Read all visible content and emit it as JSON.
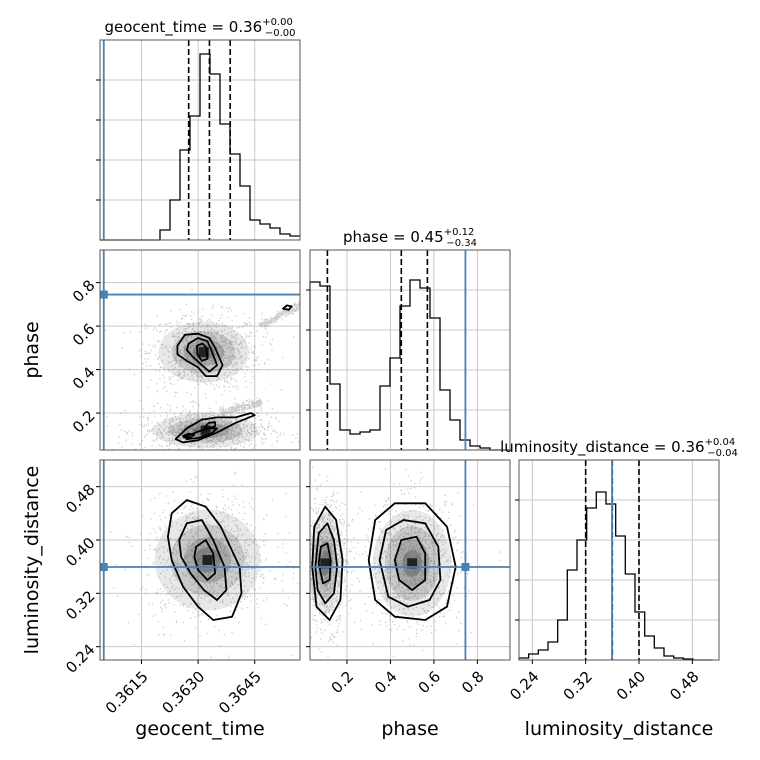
{
  "chart_data": {
    "type": "corner",
    "grid": true,
    "colors": {
      "truth": "#4682b4",
      "hist": "#000000",
      "scatter": "#8c8c8c",
      "grid": "#c8c8c8"
    },
    "parameters": [
      {
        "name": "geocent_time",
        "label": "geocent_time",
        "range": [
          0.3604,
          0.3657
        ],
        "ticks": [
          "0.3615",
          "0.3630",
          "0.3645"
        ],
        "tick_values": [
          0.3615,
          0.363,
          0.3645
        ],
        "truth": 0.3605,
        "title": {
          "prefix": "geocent_time = 0.36",
          "plus": "+0.00",
          "minus": "−0.00"
        },
        "quantiles": [
          0.36275,
          0.3633,
          0.36385
        ],
        "hist": {
          "edges_start": 0.3604,
          "bin_width": 0.000265,
          "counts": [
            0,
            0,
            0,
            0,
            0,
            0,
            0.05,
            0.2,
            0.45,
            0.62,
            0.93,
            0.83,
            0.58,
            0.43,
            0.27,
            0.1,
            0.08,
            0.06,
            0.03,
            0.02
          ]
        }
      },
      {
        "name": "phase",
        "label": "phase",
        "range": [
          0.03,
          0.95
        ],
        "ticks": [
          "0.2",
          "0.4",
          "0.6",
          "0.8"
        ],
        "tick_values": [
          0.2,
          0.4,
          0.6,
          0.8
        ],
        "truth": 0.745,
        "title": {
          "prefix": "phase = 0.45",
          "plus": "+0.12",
          "minus": "−0.34"
        },
        "quantiles": [
          0.11,
          0.45,
          0.57
        ],
        "hist": {
          "edges_start": 0.03,
          "bin_width": 0.046,
          "counts": [
            0.84,
            0.82,
            0.33,
            0.1,
            0.08,
            0.09,
            0.1,
            0.32,
            0.46,
            0.72,
            0.85,
            0.81,
            0.66,
            0.3,
            0.15,
            0.05,
            0.02,
            0.01,
            0.0,
            0.0
          ]
        }
      },
      {
        "name": "luminosity_distance",
        "label": "luminosity_distance",
        "range": [
          0.22,
          0.52
        ],
        "ticks": [
          "0.24",
          "0.32",
          "0.40",
          "0.48"
        ],
        "tick_values": [
          0.24,
          0.32,
          0.4,
          0.48
        ],
        "truth": 0.3595,
        "title": {
          "prefix": "luminosity_distance = 0.36",
          "plus": "+0.04",
          "minus": "−0.04"
        },
        "quantiles": [
          0.32,
          0.36,
          0.4
        ],
        "hist": {
          "edges_start": 0.22,
          "bin_width": 0.0145,
          "counts": [
            0.01,
            0.03,
            0.05,
            0.09,
            0.2,
            0.45,
            0.6,
            0.76,
            0.84,
            0.78,
            0.62,
            0.43,
            0.24,
            0.12,
            0.06,
            0.02,
            0.01,
            0.005,
            0.0,
            0.0
          ]
        }
      }
    ],
    "joint": [
      {
        "x": "geocent_time",
        "y": "phase",
        "blobs": [
          {
            "cx": 0.36315,
            "cy": 0.48,
            "sx": 0.0006,
            "sy": 0.07
          },
          {
            "cx": 0.3632,
            "cy": 0.12,
            "sx": 0.0007,
            "sy": 0.04
          }
        ],
        "contours": [
          {
            "level": "outer",
            "points": [
              [
                0.36245,
                0.51
              ],
              [
                0.36265,
                0.56
              ],
              [
                0.363,
                0.565
              ],
              [
                0.3633,
                0.545
              ],
              [
                0.36345,
                0.5
              ],
              [
                0.36365,
                0.42
              ],
              [
                0.3635,
                0.37
              ],
              [
                0.3632,
                0.37
              ],
              [
                0.363,
                0.41
              ],
              [
                0.3627,
                0.44
              ],
              [
                0.36245,
                0.47
              ]
            ]
          },
          {
            "level": "middle",
            "points": [
              [
                0.36275,
                0.52
              ],
              [
                0.363,
                0.545
              ],
              [
                0.36325,
                0.53
              ],
              [
                0.36335,
                0.49
              ],
              [
                0.3635,
                0.42
              ],
              [
                0.3633,
                0.39
              ],
              [
                0.3631,
                0.42
              ],
              [
                0.36285,
                0.46
              ],
              [
                0.3627,
                0.49
              ]
            ]
          },
          {
            "level": "inner",
            "points": [
              [
                0.36297,
                0.51
              ],
              [
                0.36312,
                0.52
              ],
              [
                0.36322,
                0.5
              ],
              [
                0.36325,
                0.45
              ],
              [
                0.3631,
                0.44
              ],
              [
                0.36298,
                0.47
              ]
            ]
          },
          {
            "level": "outer",
            "points": [
              [
                0.3624,
                0.08
              ],
              [
                0.3627,
                0.13
              ],
              [
                0.3631,
                0.17
              ],
              [
                0.3635,
                0.18
              ],
              [
                0.364,
                0.18
              ],
              [
                0.3644,
                0.2
              ],
              [
                0.3645,
                0.19
              ],
              [
                0.364,
                0.155
              ],
              [
                0.3635,
                0.11
              ],
              [
                0.363,
                0.075
              ],
              [
                0.3626,
                0.065
              ]
            ]
          },
          {
            "level": "middle",
            "points": [
              [
                0.36265,
                0.09
              ],
              [
                0.363,
                0.115
              ],
              [
                0.3633,
                0.13
              ],
              [
                0.3635,
                0.13
              ],
              [
                0.36335,
                0.105
              ],
              [
                0.363,
                0.085
              ],
              [
                0.3627,
                0.08
              ]
            ]
          },
          {
            "level": "inner",
            "points": [
              [
                0.3626,
                0.095
              ],
              [
                0.36275,
                0.105
              ],
              [
                0.3629,
                0.1
              ],
              [
                0.3628,
                0.088
              ],
              [
                0.36262,
                0.088
              ]
            ]
          },
          {
            "level": "inner",
            "points": [
              [
                0.36318,
                0.135
              ],
              [
                0.36328,
                0.155
              ],
              [
                0.36345,
                0.158
              ],
              [
                0.36345,
                0.14
              ],
              [
                0.36328,
                0.13
              ]
            ]
          },
          {
            "level": "inner",
            "points": [
              [
                0.36525,
                0.68
              ],
              [
                0.36535,
                0.695
              ],
              [
                0.36548,
                0.69
              ],
              [
                0.3654,
                0.675
              ]
            ]
          }
        ]
      },
      {
        "x": "geocent_time",
        "y": "luminosity_distance",
        "blobs": [
          {
            "cx": 0.36325,
            "cy": 0.37,
            "sx": 0.0007,
            "sy": 0.038
          }
        ],
        "contours": [
          {
            "level": "outer",
            "points": [
              [
                0.3622,
                0.405
              ],
              [
                0.3623,
                0.44
              ],
              [
                0.3627,
                0.46
              ],
              [
                0.3632,
                0.45
              ],
              [
                0.3636,
                0.42
              ],
              [
                0.3641,
                0.36
              ],
              [
                0.36415,
                0.32
              ],
              [
                0.3639,
                0.285
              ],
              [
                0.3634,
                0.28
              ],
              [
                0.363,
                0.3
              ],
              [
                0.3626,
                0.33
              ],
              [
                0.3623,
                0.37
              ]
            ]
          },
          {
            "level": "middle",
            "points": [
              [
                0.3625,
                0.4
              ],
              [
                0.3627,
                0.425
              ],
              [
                0.3631,
                0.43
              ],
              [
                0.3634,
                0.4
              ],
              [
                0.3637,
                0.36
              ],
              [
                0.36375,
                0.325
              ],
              [
                0.3635,
                0.31
              ],
              [
                0.36315,
                0.325
              ],
              [
                0.3628,
                0.35
              ],
              [
                0.36255,
                0.375
              ]
            ]
          },
          {
            "level": "inner",
            "points": [
              [
                0.36295,
                0.39
              ],
              [
                0.3632,
                0.4
              ],
              [
                0.3634,
                0.38
              ],
              [
                0.36345,
                0.35
              ],
              [
                0.36325,
                0.34
              ],
              [
                0.363,
                0.355
              ],
              [
                0.3629,
                0.375
              ]
            ]
          }
        ]
      },
      {
        "x": "phase",
        "y": "luminosity_distance",
        "blobs": [
          {
            "cx": 0.1,
            "cy": 0.365,
            "sx": 0.04,
            "sy": 0.038
          },
          {
            "cx": 0.5,
            "cy": 0.365,
            "sx": 0.09,
            "sy": 0.04
          }
        ],
        "contours": [
          {
            "level": "outer",
            "points": [
              [
                0.04,
                0.36
              ],
              [
                0.05,
                0.42
              ],
              [
                0.1,
                0.45
              ],
              [
                0.15,
                0.43
              ],
              [
                0.18,
                0.37
              ],
              [
                0.17,
                0.31
              ],
              [
                0.12,
                0.28
              ],
              [
                0.06,
                0.3
              ]
            ]
          },
          {
            "level": "middle",
            "points": [
              [
                0.055,
                0.36
              ],
              [
                0.07,
                0.41
              ],
              [
                0.11,
                0.425
              ],
              [
                0.14,
                0.4
              ],
              [
                0.155,
                0.36
              ],
              [
                0.14,
                0.32
              ],
              [
                0.1,
                0.305
              ],
              [
                0.065,
                0.325
              ]
            ]
          },
          {
            "level": "inner",
            "points": [
              [
                0.07,
                0.365
              ],
              [
                0.08,
                0.39
              ],
              [
                0.11,
                0.395
              ],
              [
                0.125,
                0.37
              ],
              [
                0.12,
                0.34
              ],
              [
                0.09,
                0.335
              ]
            ]
          },
          {
            "level": "outer",
            "points": [
              [
                0.3,
                0.37
              ],
              [
                0.33,
                0.43
              ],
              [
                0.42,
                0.455
              ],
              [
                0.56,
                0.455
              ],
              [
                0.66,
                0.42
              ],
              [
                0.7,
                0.36
              ],
              [
                0.66,
                0.3
              ],
              [
                0.56,
                0.28
              ],
              [
                0.42,
                0.285
              ],
              [
                0.33,
                0.31
              ]
            ]
          },
          {
            "level": "middle",
            "points": [
              [
                0.35,
                0.37
              ],
              [
                0.38,
                0.415
              ],
              [
                0.46,
                0.43
              ],
              [
                0.56,
                0.425
              ],
              [
                0.62,
                0.39
              ],
              [
                0.63,
                0.34
              ],
              [
                0.58,
                0.31
              ],
              [
                0.48,
                0.3
              ],
              [
                0.39,
                0.315
              ]
            ]
          },
          {
            "level": "inner",
            "points": [
              [
                0.42,
                0.37
              ],
              [
                0.45,
                0.4
              ],
              [
                0.52,
                0.405
              ],
              [
                0.56,
                0.38
              ],
              [
                0.56,
                0.34
              ],
              [
                0.5,
                0.325
              ],
              [
                0.44,
                0.34
              ]
            ]
          }
        ]
      }
    ]
  }
}
